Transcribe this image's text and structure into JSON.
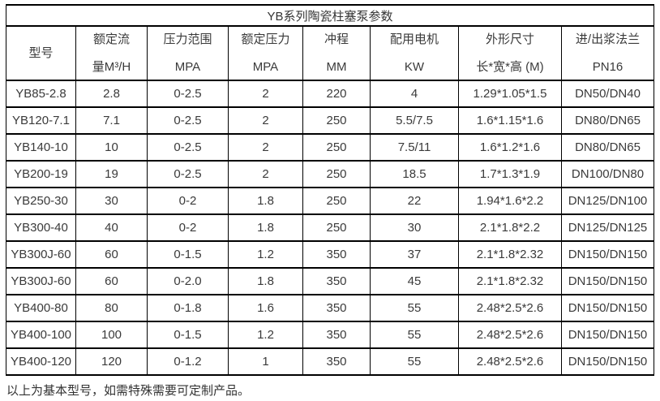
{
  "title": "YB系列陶瓷柱塞泵参数",
  "table": {
    "columns": [
      {
        "line1": "型号",
        "line2": ""
      },
      {
        "line1": "额定流",
        "line2": "量M³/H"
      },
      {
        "line1": "压力范围",
        "line2": "MPA"
      },
      {
        "line1": "额定压力",
        "line2": "MPA"
      },
      {
        "line1": "冲程",
        "line2": "MM"
      },
      {
        "line1": "配用电机",
        "line2": "KW"
      },
      {
        "line1": "外形尺寸",
        "line2": "长*宽*高 (M)"
      },
      {
        "line1": "进/出浆法兰",
        "line2": "PN16"
      }
    ],
    "rows": [
      [
        "YB85-2.8",
        "2.8",
        "0-2.5",
        "2",
        "220",
        "4",
        "1.29*1.05*1.5",
        "DN50/DN40"
      ],
      [
        "YB120-7.1",
        "7.1",
        "0-2.5",
        "2",
        "250",
        "5.5/7.5",
        "1.6*1.15*1.6",
        "DN80/DN65"
      ],
      [
        "YB140-10",
        "10",
        "0-2.5",
        "2",
        "250",
        "7.5/11",
        "1.6*1.2*1.6",
        "DN80/DN65"
      ],
      [
        "YB200-19",
        "19",
        "0-2.5",
        "2",
        "250",
        "18.5",
        "1.7*1.3*1.9",
        "DN100/DN80"
      ],
      [
        "YB250-30",
        "30",
        "0-2",
        "1.8",
        "250",
        "22",
        "1.94*1.6*2.2",
        "DN125/DN100"
      ],
      [
        "YB300-40",
        "40",
        "0-2",
        "1.8",
        "250",
        "30",
        "2.1*1.8*2.2",
        "DN125/DN125"
      ],
      [
        "YB300J-60",
        "60",
        "0-1.5",
        "1.2",
        "350",
        "37",
        "2.1*1.8*2.32",
        "DN150/DN150"
      ],
      [
        "YB300J-60",
        "60",
        "0-2.0",
        "1.8",
        "350",
        "45",
        "2.1*1.8*2.32",
        "DN150/DN150"
      ],
      [
        "YB400-80",
        "80",
        "0-1.8",
        "1.6",
        "350",
        "55",
        "2.48*2.5*2.6",
        "DN150/DN150"
      ],
      [
        "YB400-100",
        "100",
        "0-1.5",
        "1.2",
        "350",
        "55",
        "2.48*2.5*2.6",
        "DN150/DN150"
      ],
      [
        "YB400-120",
        "120",
        "0-1.2",
        "1",
        "350",
        "55",
        "2.48*2.5*2.6",
        "DN150/DN150"
      ]
    ]
  },
  "footer_note": "以上为基本型号，如需特殊需要可定制产品。",
  "colors": {
    "border": "#000000",
    "text": "#333333",
    "background": "#ffffff"
  }
}
